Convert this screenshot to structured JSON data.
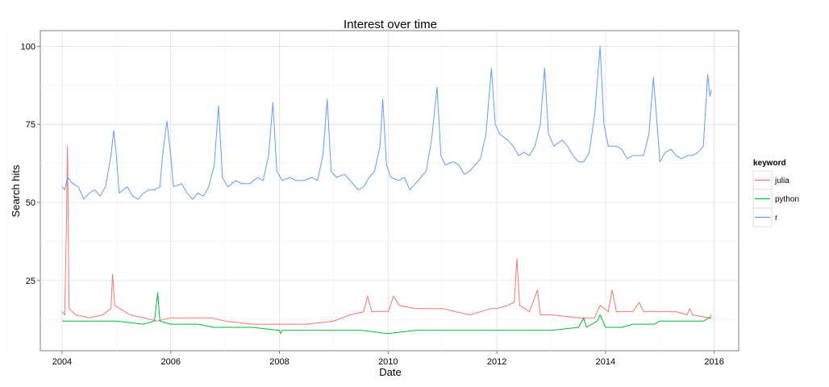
{
  "chart_data": {
    "type": "line",
    "title": "Interest over time",
    "xlabel": "Date",
    "ylabel": "Search hits",
    "xlim": [
      2003.6,
      2016.45
    ],
    "ylim": [
      2.5,
      105
    ],
    "x_ticks": [
      2004,
      2006,
      2008,
      2010,
      2012,
      2014,
      2016
    ],
    "x_tick_labels": [
      "2004",
      "2006",
      "2008",
      "2010",
      "2012",
      "2014",
      "2016"
    ],
    "y_ticks": [
      25,
      50,
      75,
      100
    ],
    "y_tick_labels": [
      "25",
      "50",
      "75",
      "100"
    ],
    "grid": true,
    "legend": {
      "title": "keyword",
      "position": "right"
    },
    "series": [
      {
        "name": "julia",
        "color": "#F8766D",
        "points": [
          [
            2004.0,
            15
          ],
          [
            2004.05,
            14
          ],
          [
            2004.08,
            42
          ],
          [
            2004.1,
            68
          ],
          [
            2004.13,
            16
          ],
          [
            2004.25,
            14
          ],
          [
            2004.5,
            13
          ],
          [
            2004.75,
            14
          ],
          [
            2004.9,
            16
          ],
          [
            2004.93,
            27
          ],
          [
            2004.97,
            17
          ],
          [
            2005.25,
            14
          ],
          [
            2005.5,
            13
          ],
          [
            2005.75,
            12
          ],
          [
            2006.0,
            13
          ],
          [
            2006.25,
            13
          ],
          [
            2006.5,
            13
          ],
          [
            2006.75,
            13
          ],
          [
            2007.0,
            12
          ],
          [
            2007.5,
            11
          ],
          [
            2008.0,
            11
          ],
          [
            2008.5,
            11
          ],
          [
            2009.0,
            12
          ],
          [
            2009.3,
            14
          ],
          [
            2009.55,
            15
          ],
          [
            2009.62,
            20
          ],
          [
            2009.7,
            15
          ],
          [
            2010.0,
            15
          ],
          [
            2010.1,
            20
          ],
          [
            2010.2,
            17
          ],
          [
            2010.5,
            16
          ],
          [
            2011.0,
            16
          ],
          [
            2011.5,
            14
          ],
          [
            2011.9,
            16
          ],
          [
            2012.0,
            16
          ],
          [
            2012.2,
            17
          ],
          [
            2012.32,
            18
          ],
          [
            2012.37,
            32
          ],
          [
            2012.42,
            17
          ],
          [
            2012.6,
            15
          ],
          [
            2012.75,
            22
          ],
          [
            2012.8,
            14
          ],
          [
            2013.0,
            14
          ],
          [
            2013.5,
            13
          ],
          [
            2013.8,
            13
          ],
          [
            2013.9,
            17
          ],
          [
            2014.05,
            15
          ],
          [
            2014.12,
            22
          ],
          [
            2014.2,
            15
          ],
          [
            2014.5,
            15
          ],
          [
            2014.62,
            18
          ],
          [
            2014.7,
            15
          ],
          [
            2015.0,
            15
          ],
          [
            2015.3,
            15
          ],
          [
            2015.5,
            14
          ],
          [
            2015.55,
            16
          ],
          [
            2015.6,
            14
          ],
          [
            2015.9,
            13
          ],
          [
            2015.95,
            14
          ]
        ]
      },
      {
        "name": "python",
        "color": "#00BA38",
        "points": [
          [
            2004.0,
            12
          ],
          [
            2004.5,
            12
          ],
          [
            2005.0,
            12
          ],
          [
            2005.5,
            11
          ],
          [
            2005.7,
            12
          ],
          [
            2005.76,
            21
          ],
          [
            2005.8,
            12
          ],
          [
            2006.0,
            11
          ],
          [
            2006.5,
            11
          ],
          [
            2006.8,
            10
          ],
          [
            2007.0,
            10
          ],
          [
            2007.5,
            10
          ],
          [
            2008.0,
            9
          ],
          [
            2008.02,
            8
          ],
          [
            2008.05,
            9
          ],
          [
            2008.5,
            9
          ],
          [
            2009.0,
            9
          ],
          [
            2009.5,
            9
          ],
          [
            2010.0,
            8
          ],
          [
            2010.5,
            9
          ],
          [
            2011.0,
            9
          ],
          [
            2011.5,
            9
          ],
          [
            2012.0,
            9
          ],
          [
            2012.5,
            9
          ],
          [
            2013.0,
            9
          ],
          [
            2013.5,
            10
          ],
          [
            2013.6,
            13
          ],
          [
            2013.65,
            10
          ],
          [
            2013.85,
            12
          ],
          [
            2013.9,
            14
          ],
          [
            2013.95,
            12
          ],
          [
            2014.0,
            10
          ],
          [
            2014.3,
            10
          ],
          [
            2014.5,
            11
          ],
          [
            2014.9,
            11
          ],
          [
            2015.0,
            12
          ],
          [
            2015.5,
            12
          ],
          [
            2015.8,
            12
          ],
          [
            2015.9,
            13
          ],
          [
            2015.95,
            13
          ]
        ]
      },
      {
        "name": "r",
        "color": "#619CFF",
        "points": [
          [
            2004.0,
            55
          ],
          [
            2004.05,
            54
          ],
          [
            2004.1,
            58
          ],
          [
            2004.2,
            56
          ],
          [
            2004.3,
            55
          ],
          [
            2004.4,
            51
          ],
          [
            2004.5,
            53
          ],
          [
            2004.6,
            54
          ],
          [
            2004.7,
            52
          ],
          [
            2004.8,
            55
          ],
          [
            2004.9,
            65
          ],
          [
            2004.95,
            73
          ],
          [
            2005.0,
            65
          ],
          [
            2005.05,
            53
          ],
          [
            2005.2,
            55
          ],
          [
            2005.3,
            52
          ],
          [
            2005.4,
            51
          ],
          [
            2005.5,
            53
          ],
          [
            2005.6,
            54
          ],
          [
            2005.7,
            54
          ],
          [
            2005.8,
            55
          ],
          [
            2005.85,
            65
          ],
          [
            2005.93,
            76
          ],
          [
            2006.0,
            65
          ],
          [
            2006.05,
            55
          ],
          [
            2006.2,
            56
          ],
          [
            2006.3,
            53
          ],
          [
            2006.4,
            51
          ],
          [
            2006.5,
            53
          ],
          [
            2006.6,
            52
          ],
          [
            2006.7,
            55
          ],
          [
            2006.8,
            62
          ],
          [
            2006.88,
            81
          ],
          [
            2006.95,
            58
          ],
          [
            2007.05,
            55
          ],
          [
            2007.2,
            57
          ],
          [
            2007.3,
            56
          ],
          [
            2007.45,
            56
          ],
          [
            2007.6,
            58
          ],
          [
            2007.7,
            57
          ],
          [
            2007.8,
            65
          ],
          [
            2007.88,
            82
          ],
          [
            2007.95,
            60
          ],
          [
            2008.05,
            57
          ],
          [
            2008.2,
            58
          ],
          [
            2008.3,
            57
          ],
          [
            2008.45,
            57
          ],
          [
            2008.6,
            58
          ],
          [
            2008.7,
            57
          ],
          [
            2008.8,
            65
          ],
          [
            2008.88,
            83
          ],
          [
            2008.95,
            60
          ],
          [
            2009.05,
            58
          ],
          [
            2009.2,
            59
          ],
          [
            2009.3,
            57
          ],
          [
            2009.45,
            54
          ],
          [
            2009.55,
            55
          ],
          [
            2009.65,
            58
          ],
          [
            2009.75,
            60
          ],
          [
            2009.85,
            68
          ],
          [
            2009.9,
            83
          ],
          [
            2009.97,
            62
          ],
          [
            2010.05,
            58
          ],
          [
            2010.2,
            57
          ],
          [
            2010.3,
            58
          ],
          [
            2010.4,
            54
          ],
          [
            2010.5,
            56
          ],
          [
            2010.6,
            58
          ],
          [
            2010.7,
            60
          ],
          [
            2010.8,
            70
          ],
          [
            2010.9,
            87
          ],
          [
            2010.97,
            65
          ],
          [
            2011.05,
            62
          ],
          [
            2011.2,
            63
          ],
          [
            2011.3,
            62
          ],
          [
            2011.4,
            59
          ],
          [
            2011.5,
            60
          ],
          [
            2011.6,
            62
          ],
          [
            2011.7,
            64
          ],
          [
            2011.8,
            72
          ],
          [
            2011.9,
            93
          ],
          [
            2011.97,
            75
          ],
          [
            2012.05,
            72
          ],
          [
            2012.2,
            70
          ],
          [
            2012.3,
            68
          ],
          [
            2012.4,
            65
          ],
          [
            2012.5,
            66
          ],
          [
            2012.6,
            65
          ],
          [
            2012.7,
            68
          ],
          [
            2012.8,
            75
          ],
          [
            2012.88,
            93
          ],
          [
            2012.95,
            72
          ],
          [
            2013.05,
            68
          ],
          [
            2013.2,
            70
          ],
          [
            2013.3,
            68
          ],
          [
            2013.4,
            65
          ],
          [
            2013.5,
            63
          ],
          [
            2013.6,
            63
          ],
          [
            2013.7,
            66
          ],
          [
            2013.8,
            78
          ],
          [
            2013.9,
            100
          ],
          [
            2013.97,
            75
          ],
          [
            2014.05,
            68
          ],
          [
            2014.2,
            68
          ],
          [
            2014.3,
            67
          ],
          [
            2014.4,
            64
          ],
          [
            2014.5,
            65
          ],
          [
            2014.6,
            65
          ],
          [
            2014.7,
            65
          ],
          [
            2014.8,
            72
          ],
          [
            2014.88,
            90
          ],
          [
            2014.95,
            75
          ],
          [
            2015.0,
            63
          ],
          [
            2015.1,
            66
          ],
          [
            2015.2,
            67
          ],
          [
            2015.3,
            65
          ],
          [
            2015.4,
            64
          ],
          [
            2015.5,
            65
          ],
          [
            2015.6,
            65
          ],
          [
            2015.7,
            66
          ],
          [
            2015.8,
            68
          ],
          [
            2015.88,
            91
          ],
          [
            2015.92,
            84
          ],
          [
            2015.95,
            86
          ]
        ]
      }
    ]
  }
}
